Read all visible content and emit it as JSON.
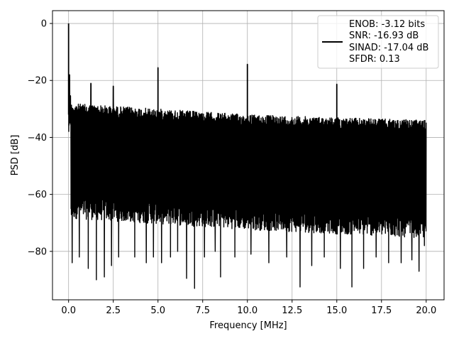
{
  "chart_data": {
    "type": "line",
    "title": "",
    "xlabel": "Frequency [MHz]",
    "ylabel": "PSD [dB]",
    "xlim": [
      -0.9,
      21.0
    ],
    "ylim": [
      -97,
      4.5
    ],
    "xticks": [
      0.0,
      2.5,
      5.0,
      7.5,
      10.0,
      12.5,
      15.0,
      17.5,
      20.0
    ],
    "xtick_labels": [
      "0.0",
      "2.5",
      "5.0",
      "7.5",
      "10.0",
      "12.5",
      "15.0",
      "17.5",
      "20.0"
    ],
    "yticks": [
      0,
      -20,
      -40,
      -60,
      -80
    ],
    "ytick_labels": [
      "0",
      "−20",
      "−40",
      "−60",
      "−80"
    ],
    "grid": true,
    "legend_position": "top-right",
    "series": [
      {
        "name": "",
        "color": "#000000",
        "noise_band": {
          "x_range": [
            0.0,
            20.0
          ],
          "upper": [
            [
              0.0,
              -28
            ],
            [
              5.0,
              -30
            ],
            [
              10.0,
              -32
            ],
            [
              15.0,
              -33
            ],
            [
              20.0,
              -34
            ]
          ],
          "lower_typical": [
            [
              0.0,
              -66
            ],
            [
              10.0,
              -70
            ],
            [
              20.0,
              -73
            ]
          ]
        },
        "spikes": [
          {
            "x": 0.0,
            "y": 0.0
          },
          {
            "x": 0.05,
            "y": -18
          },
          {
            "x": 1.25,
            "y": -21
          },
          {
            "x": 2.5,
            "y": -22
          },
          {
            "x": 5.0,
            "y": -15.5
          },
          {
            "x": 10.0,
            "y": -14.3
          },
          {
            "x": 15.0,
            "y": -21.3
          }
        ],
        "dips": [
          {
            "x": 0.2,
            "y": -84
          },
          {
            "x": 0.6,
            "y": -82
          },
          {
            "x": 1.1,
            "y": -86
          },
          {
            "x": 1.55,
            "y": -90
          },
          {
            "x": 2.0,
            "y": -89
          },
          {
            "x": 2.4,
            "y": -85
          },
          {
            "x": 2.8,
            "y": -82
          },
          {
            "x": 3.7,
            "y": -82
          },
          {
            "x": 4.35,
            "y": -84
          },
          {
            "x": 4.75,
            "y": -82
          },
          {
            "x": 5.2,
            "y": -84
          },
          {
            "x": 5.7,
            "y": -82
          },
          {
            "x": 6.1,
            "y": -80
          },
          {
            "x": 6.6,
            "y": -89.5
          },
          {
            "x": 7.05,
            "y": -93
          },
          {
            "x": 7.6,
            "y": -82
          },
          {
            "x": 8.2,
            "y": -80
          },
          {
            "x": 8.5,
            "y": -89
          },
          {
            "x": 9.3,
            "y": -82
          },
          {
            "x": 10.2,
            "y": -81
          },
          {
            "x": 11.2,
            "y": -84
          },
          {
            "x": 12.2,
            "y": -82
          },
          {
            "x": 12.95,
            "y": -92.5
          },
          {
            "x": 13.6,
            "y": -85
          },
          {
            "x": 14.3,
            "y": -82
          },
          {
            "x": 15.2,
            "y": -86
          },
          {
            "x": 15.85,
            "y": -92.5
          },
          {
            "x": 16.5,
            "y": -86
          },
          {
            "x": 17.2,
            "y": -82
          },
          {
            "x": 17.9,
            "y": -84
          },
          {
            "x": 18.6,
            "y": -84
          },
          {
            "x": 19.2,
            "y": -83
          },
          {
            "x": 19.6,
            "y": -87
          },
          {
            "x": 19.9,
            "y": -78
          }
        ]
      }
    ],
    "legend": {
      "lines": [
        "ENOB: -3.12 bits",
        "SNR: -16.93 dB",
        "SINAD: -17.04 dB",
        "SFDR: 0.13"
      ]
    }
  }
}
